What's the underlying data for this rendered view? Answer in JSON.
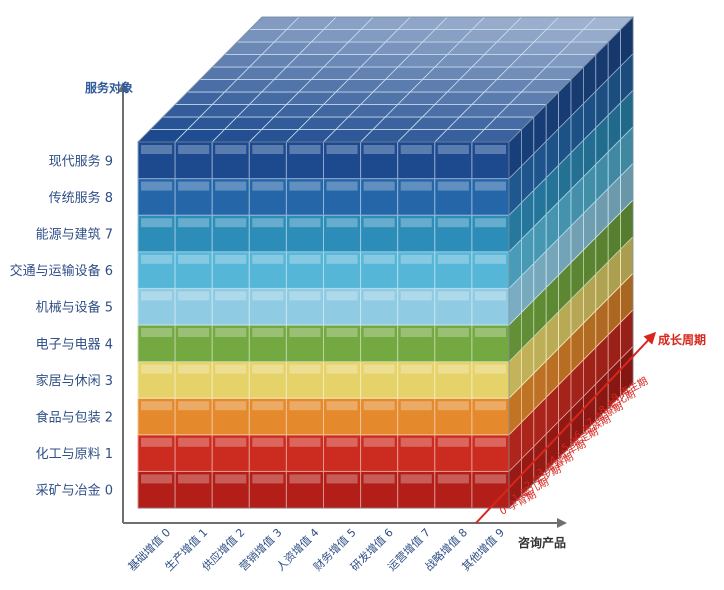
{
  "axes": {
    "vertical": {
      "title": "服务对象",
      "labels": [
        "采矿与冶金 0",
        "化工与原料 1",
        "食品与包装 2",
        "家居与休闲 3",
        "电子与电器 4",
        "机械与设备 5",
        "交通与运输设备 6",
        "能源与建筑 7",
        "传统服务 8",
        "现代服务 9"
      ]
    },
    "horizontal": {
      "title": "咨询产品",
      "labels": [
        "基础增值 0",
        "生产增值 1",
        "供应增值 2",
        "营销增值 3",
        "人资增值 4",
        "财务增值 5",
        "研发增值 6",
        "运营增值 7",
        "战略增值 8",
        "其他增值 9"
      ]
    },
    "depth": {
      "title": "成长周期",
      "labels": [
        "0 孕育期",
        "1 婴儿期",
        "2 学步期",
        "3 青春期",
        "4 壮年期",
        "5 稳定期",
        "6 贵族期",
        "7 官僚期",
        "8 老化期",
        "9 再生期"
      ]
    }
  },
  "colors": {
    "axis": "#6f6f6f",
    "axis_title": "#2f5b9a",
    "axis_labels": "#2f4f86",
    "depth_axis": "#d8261d",
    "layers": [
      "#b31f18",
      "#cc2c20",
      "#e4892c",
      "#e5d36a",
      "#74a840",
      "#8fcbe3",
      "#56b6d7",
      "#2d8db9",
      "#2466a8",
      "#1d4a8f"
    ]
  }
}
